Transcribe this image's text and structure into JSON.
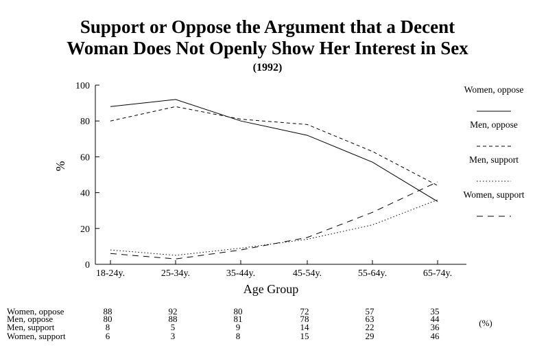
{
  "chart_data": {
    "type": "line",
    "title_line1": "Support or Oppose the Argument that a Decent",
    "title_line2": "Woman Does Not Openly Show Her Interest in Sex",
    "subtitle": "(1992)",
    "xlabel": "Age Group",
    "ylabel": "%",
    "ylim": [
      0,
      100
    ],
    "yticks": [
      0,
      20,
      40,
      60,
      80,
      100
    ],
    "categories": [
      "18-24y.",
      "25-34y.",
      "35-44y.",
      "45-54y.",
      "55-64y.",
      "65-74y."
    ],
    "grid": false,
    "legend_position": "right",
    "table_unit": "(%)",
    "series": [
      {
        "name": "Women, oppose",
        "values": [
          88,
          92,
          80,
          72,
          57,
          35
        ],
        "style": "solid",
        "color": "#000000"
      },
      {
        "name": "Men, oppose",
        "values": [
          80,
          88,
          81,
          78,
          63,
          44
        ],
        "style": "dashed",
        "color": "#000000"
      },
      {
        "name": "Men, support",
        "values": [
          8,
          5,
          9,
          14,
          22,
          36
        ],
        "style": "dotted",
        "color": "#000000"
      },
      {
        "name": "Women, support",
        "values": [
          6,
          3,
          8,
          15,
          29,
          46
        ],
        "style": "longdash",
        "color": "#000000"
      }
    ],
    "table_rows": [
      {
        "label": "Women, oppose",
        "values": [
          "88",
          "92",
          "80",
          "72",
          "57",
          "35"
        ]
      },
      {
        "label": "Men, oppose",
        "values": [
          "80",
          "88",
          "81",
          "78",
          "63",
          "44"
        ]
      },
      {
        "label": "Men, support",
        "values": [
          "8",
          "5",
          "9",
          "14",
          "22",
          "36"
        ]
      },
      {
        "label": "Women, support",
        "values": [
          "6",
          "3",
          "8",
          "15",
          "29",
          "46"
        ]
      }
    ]
  }
}
